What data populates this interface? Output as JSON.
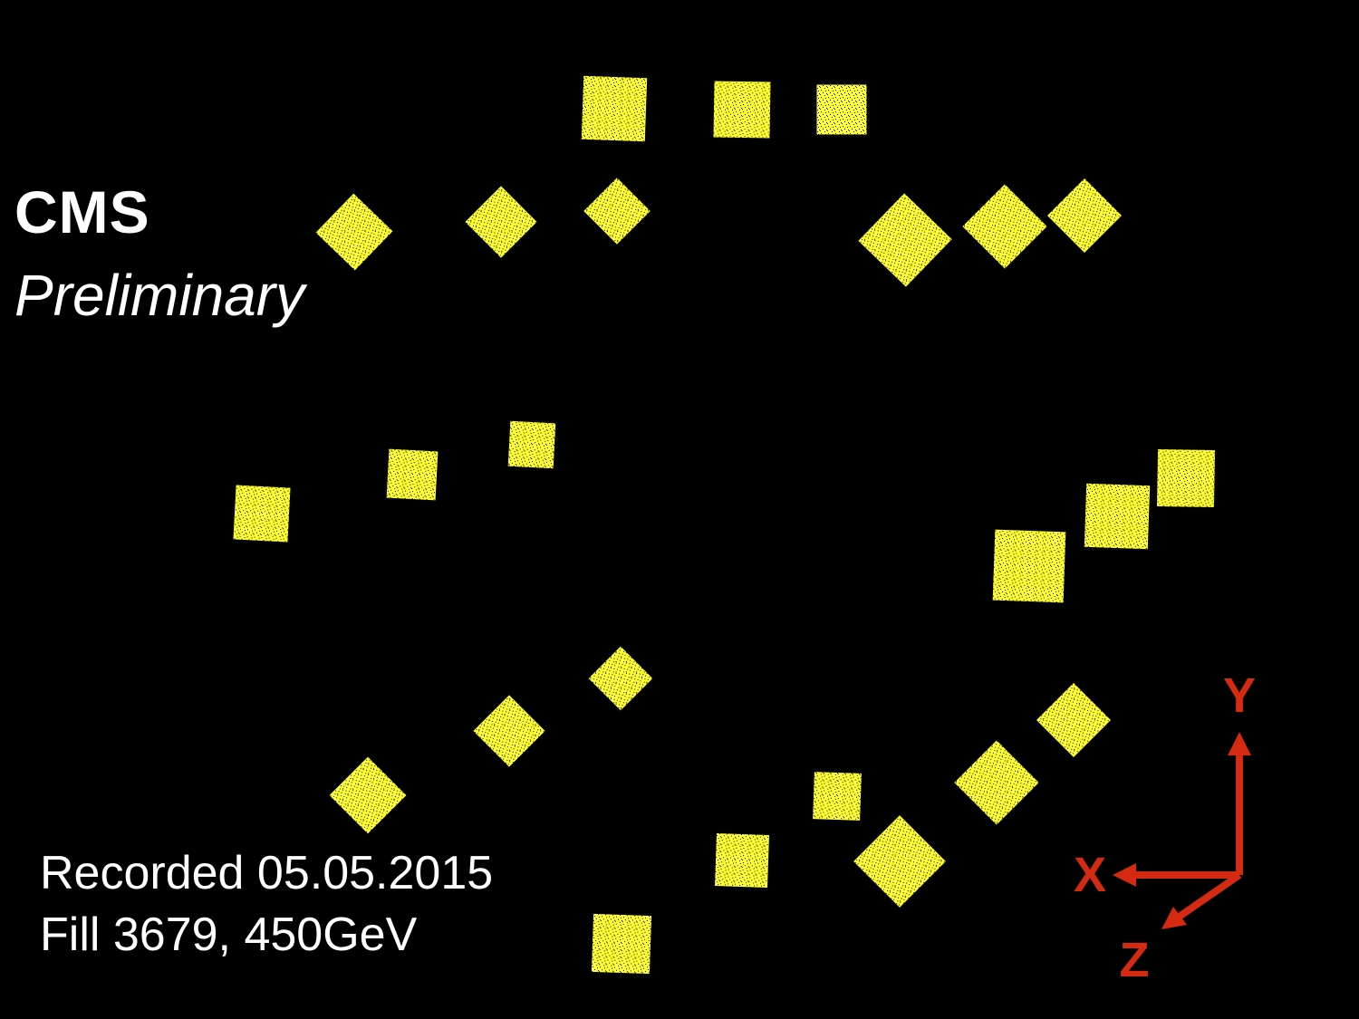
{
  "header": {
    "experiment": "CMS",
    "status": "Preliminary"
  },
  "footer": {
    "recorded": "Recorded 05.05.2015",
    "fill": "Fill 3679, 450GeV"
  },
  "axes": {
    "y_label": "Y",
    "x_label": "X",
    "z_label": "Z",
    "color": "#d42a12"
  },
  "colors": {
    "background": "#000000",
    "text": "#ffffff",
    "sensor": "#ffff33"
  }
}
